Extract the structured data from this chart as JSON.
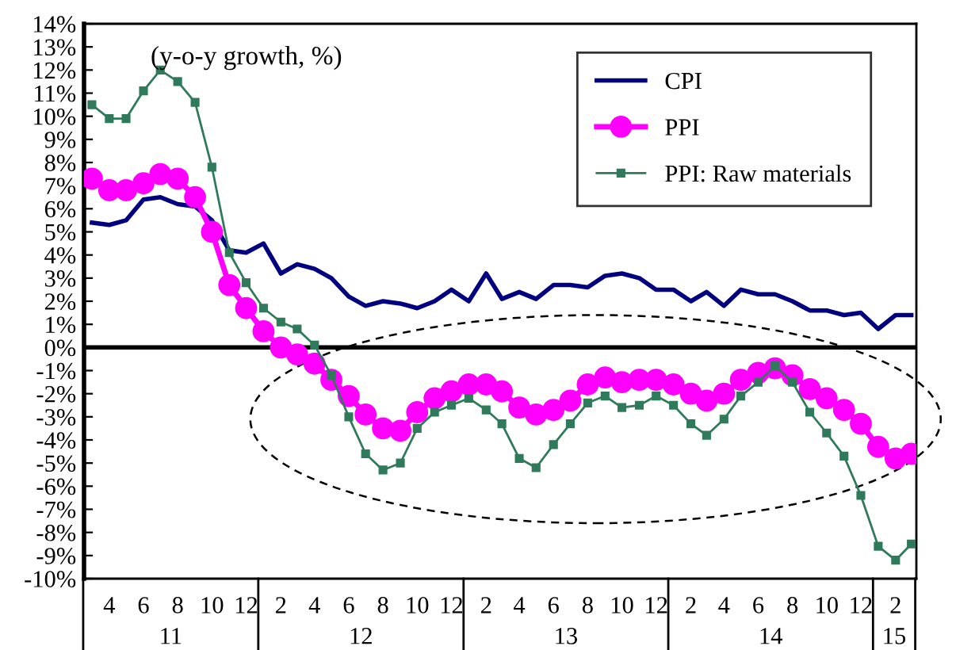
{
  "chart_data": {
    "type": "line",
    "title": "(y-o-y growth, %)",
    "x": [
      "2011-03",
      "2011-04",
      "2011-05",
      "2011-06",
      "2011-07",
      "2011-08",
      "2011-09",
      "2011-10",
      "2011-11",
      "2011-12",
      "2012-01",
      "2012-02",
      "2012-03",
      "2012-04",
      "2012-05",
      "2012-06",
      "2012-07",
      "2012-08",
      "2012-09",
      "2012-10",
      "2012-11",
      "2012-12",
      "2013-01",
      "2013-02",
      "2013-03",
      "2013-04",
      "2013-05",
      "2013-06",
      "2013-07",
      "2013-08",
      "2013-09",
      "2013-10",
      "2013-11",
      "2013-12",
      "2014-01",
      "2014-02",
      "2014-03",
      "2014-04",
      "2014-05",
      "2014-06",
      "2014-07",
      "2014-08",
      "2014-09",
      "2014-10",
      "2014-11",
      "2014-12",
      "2015-01",
      "2015-02",
      "2015-03"
    ],
    "series": [
      {
        "name": "CPI",
        "color": "#000080",
        "marker": "none",
        "values": [
          5.4,
          5.3,
          5.5,
          6.4,
          6.5,
          6.2,
          6.1,
          5.5,
          4.2,
          4.1,
          4.5,
          3.2,
          3.6,
          3.4,
          3.0,
          2.2,
          1.8,
          2.0,
          1.9,
          1.7,
          2.0,
          2.5,
          2.0,
          3.2,
          2.1,
          2.4,
          2.1,
          2.7,
          2.7,
          2.6,
          3.1,
          3.2,
          3.0,
          2.5,
          2.5,
          2.0,
          2.4,
          1.8,
          2.5,
          2.3,
          2.3,
          2.0,
          1.6,
          1.6,
          1.4,
          1.5,
          0.8,
          1.4,
          1.4
        ]
      },
      {
        "name": "PPI",
        "color": "#ff00ff",
        "marker": "circle",
        "values": [
          7.3,
          6.8,
          6.8,
          7.1,
          7.5,
          7.3,
          6.5,
          5.0,
          2.7,
          1.7,
          0.7,
          0.0,
          -0.3,
          -0.7,
          -1.4,
          -2.1,
          -2.9,
          -3.5,
          -3.6,
          -2.8,
          -2.2,
          -1.9,
          -1.6,
          -1.6,
          -1.9,
          -2.6,
          -2.9,
          -2.7,
          -2.3,
          -1.6,
          -1.3,
          -1.5,
          -1.4,
          -1.4,
          -1.6,
          -2.0,
          -2.3,
          -2.0,
          -1.4,
          -1.1,
          -0.9,
          -1.2,
          -1.8,
          -2.2,
          -2.7,
          -3.3,
          -4.3,
          -4.8,
          -4.6
        ]
      },
      {
        "name": "PPI: Raw materials",
        "color": "#2f7a5a",
        "marker": "square",
        "values": [
          10.5,
          9.9,
          9.9,
          11.1,
          12.0,
          11.5,
          10.6,
          7.8,
          4.1,
          2.8,
          1.7,
          1.1,
          0.8,
          0.1,
          -1.2,
          -3.0,
          -4.6,
          -5.3,
          -5.0,
          -3.5,
          -2.8,
          -2.5,
          -2.2,
          -2.7,
          -3.3,
          -4.8,
          -5.2,
          -4.2,
          -3.3,
          -2.4,
          -2.1,
          -2.6,
          -2.5,
          -2.1,
          -2.5,
          -3.3,
          -3.8,
          -3.1,
          -2.1,
          -1.5,
          -0.8,
          -1.5,
          -2.8,
          -3.7,
          -4.7,
          -6.4,
          -8.6,
          -9.2,
          -8.5
        ]
      }
    ],
    "xlim": [
      "2011-02-15",
      "2015-03-10"
    ],
    "xticks": [
      {
        "value": "2011-04",
        "label": "4"
      },
      {
        "value": "2011-06",
        "label": "6"
      },
      {
        "value": "2011-08",
        "label": "8"
      },
      {
        "value": "2011-10",
        "label": "10"
      },
      {
        "value": "2011-12",
        "label": "12"
      },
      {
        "value": "2012-02",
        "label": "2"
      },
      {
        "value": "2012-04",
        "label": "4"
      },
      {
        "value": "2012-06",
        "label": "6"
      },
      {
        "value": "2012-08",
        "label": "8"
      },
      {
        "value": "2012-10",
        "label": "10"
      },
      {
        "value": "2012-12",
        "label": "12"
      },
      {
        "value": "2013-02",
        "label": "2"
      },
      {
        "value": "2013-04",
        "label": "4"
      },
      {
        "value": "2013-06",
        "label": "6"
      },
      {
        "value": "2013-08",
        "label": "8"
      },
      {
        "value": "2013-10",
        "label": "10"
      },
      {
        "value": "2013-12",
        "label": "12"
      },
      {
        "value": "2014-02",
        "label": "2"
      },
      {
        "value": "2014-04",
        "label": "4"
      },
      {
        "value": "2014-06",
        "label": "6"
      },
      {
        "value": "2014-08",
        "label": "8"
      },
      {
        "value": "2014-10",
        "label": "10"
      },
      {
        "value": "2014-12",
        "label": "12"
      },
      {
        "value": "2015-02",
        "label": "2"
      }
    ],
    "ylim": [
      -10,
      14
    ],
    "yticks": [
      {
        "value": -10,
        "label": "-10%"
      },
      {
        "value": -9,
        "label": "-9%"
      },
      {
        "value": -8,
        "label": "-8%"
      },
      {
        "value": -7,
        "label": "-7%"
      },
      {
        "value": -6,
        "label": "-6%"
      },
      {
        "value": -5,
        "label": "-5%"
      },
      {
        "value": -4,
        "label": "-4%"
      },
      {
        "value": -3,
        "label": "-3%"
      },
      {
        "value": -2,
        "label": "-2%"
      },
      {
        "value": -1,
        "label": "-1%"
      },
      {
        "value": 0,
        "label": "0%"
      },
      {
        "value": 1,
        "label": "1%"
      },
      {
        "value": 2,
        "label": "2%"
      },
      {
        "value": 3,
        "label": "3%"
      },
      {
        "value": 4,
        "label": "4%"
      },
      {
        "value": 5,
        "label": "5%"
      },
      {
        "value": 6,
        "label": "6%"
      },
      {
        "value": 7,
        "label": "7%"
      },
      {
        "value": 8,
        "label": "8%"
      },
      {
        "value": 9,
        "label": "9%"
      },
      {
        "value": 10,
        "label": "10%"
      },
      {
        "value": 11,
        "label": "11%"
      },
      {
        "value": 12,
        "label": "12%"
      },
      {
        "value": 13,
        "label": "13%"
      },
      {
        "value": 14,
        "label": "14%"
      }
    ],
    "annotations": [
      "11",
      "12",
      "13",
      "14",
      "15"
    ],
    "ref_lines": [
      {
        "axis": "y",
        "value": 0,
        "color": "#000000"
      }
    ],
    "grid": false,
    "legend": "top right",
    "line_style": "solid"
  }
}
